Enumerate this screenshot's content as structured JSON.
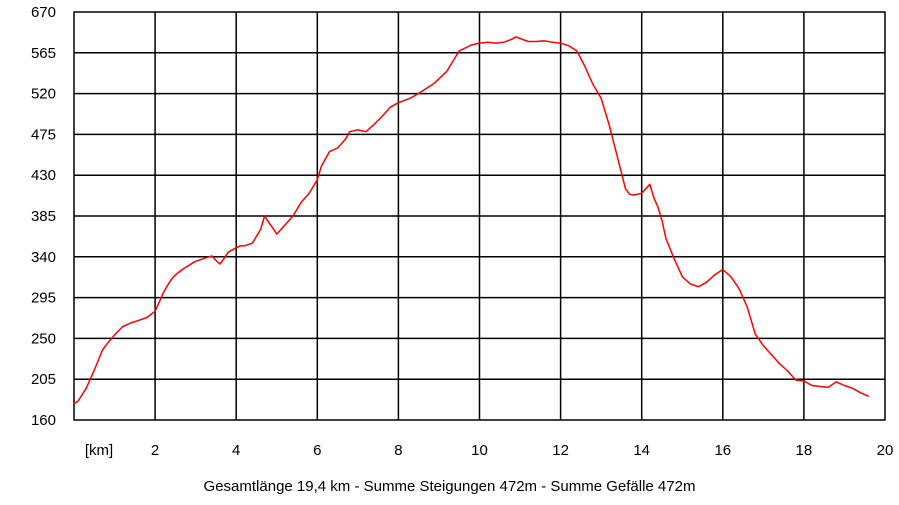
{
  "chart_data": {
    "type": "line",
    "x_unit_label": "[km]",
    "x_ticks": [
      2,
      4,
      6,
      8,
      10,
      12,
      14,
      16,
      18,
      20
    ],
    "y_ticks": [
      160,
      205,
      250,
      295,
      340,
      385,
      430,
      475,
      520,
      565,
      670
    ],
    "xlim": [
      0,
      20
    ],
    "grid": true,
    "line_color": "#ff0000",
    "series": [
      {
        "x": [
          0,
          0.1,
          0.3,
          0.5,
          0.7,
          0.8,
          1.0,
          1.2,
          1.4,
          1.6,
          1.8,
          2.0,
          2.1,
          2.2,
          2.3,
          2.4,
          2.5,
          2.7,
          3.0,
          3.2,
          3.4,
          3.5,
          3.6,
          3.7,
          3.8,
          4.0,
          4.1,
          4.2,
          4.4,
          4.6,
          4.7,
          4.8,
          4.9,
          5.0,
          5.1,
          5.2,
          5.4,
          5.6,
          5.8,
          6.0,
          6.1,
          6.3,
          6.5,
          6.7,
          6.8,
          7.0,
          7.2,
          7.4,
          7.6,
          7.8,
          8.0,
          8.3,
          8.6,
          8.9,
          9.2,
          9.5,
          9.8,
          10.0,
          10.2,
          10.4,
          10.6,
          10.8,
          10.9,
          11.1,
          11.2,
          11.4,
          11.6,
          11.8,
          12.0,
          12.2,
          12.4,
          12.6,
          12.8,
          13.0,
          13.2,
          13.4,
          13.6,
          13.7,
          13.8,
          14.0,
          14.2,
          14.3,
          14.4,
          14.5,
          14.6,
          14.8,
          15.0,
          15.2,
          15.4,
          15.6,
          15.8,
          16.0,
          16.2,
          16.4,
          16.6,
          16.8,
          17.0,
          17.2,
          17.4,
          17.6,
          17.8,
          18.0,
          18.2,
          18.4,
          18.6,
          18.8,
          19.0,
          19.2,
          19.4,
          19.6
        ],
        "y": [
          178,
          181,
          195,
          215,
          237,
          243,
          254,
          263,
          267,
          270,
          273,
          280,
          290,
          300,
          308,
          315,
          320,
          327,
          335,
          338,
          341,
          336,
          332,
          338,
          345,
          350,
          352,
          352,
          355,
          370,
          385,
          378,
          372,
          365,
          370,
          375,
          385,
          400,
          410,
          425,
          440,
          456,
          460,
          470,
          478,
          480,
          478,
          486,
          495,
          505,
          510,
          515,
          523,
          532,
          545,
          570,
          585,
          590,
          592,
          590,
          592,
          600,
          606,
          598,
          594,
          594,
          596,
          592,
          590,
          583,
          570,
          550,
          530,
          515,
          485,
          450,
          415,
          409,
          408,
          410,
          420,
          405,
          395,
          380,
          360,
          338,
          318,
          310,
          307,
          312,
          320,
          326,
          318,
          305,
          285,
          255,
          242,
          232,
          222,
          214,
          204,
          203,
          198,
          197,
          196,
          202,
          198,
          195,
          190,
          186
        ]
      }
    ]
  },
  "footer": {
    "summary": "Gesamtlänge 19,4 km - Summe Steigungen 472m - Summe Gefälle 472m"
  }
}
